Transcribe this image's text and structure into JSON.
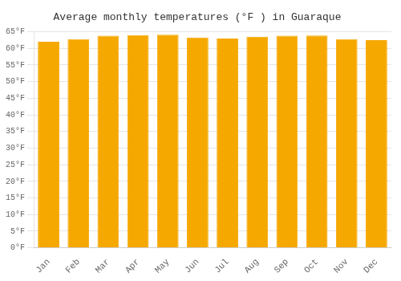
{
  "chart_data": {
    "type": "bar",
    "title": "Average monthly temperatures (°F ) in Guaraque",
    "categories": [
      "Jan",
      "Feb",
      "Mar",
      "Apr",
      "May",
      "Jun",
      "Jul",
      "Aug",
      "Sep",
      "Oct",
      "Nov",
      "Dec"
    ],
    "values": [
      62.0,
      62.8,
      63.8,
      64.0,
      64.1,
      63.3,
      63.0,
      63.5,
      63.8,
      63.9,
      62.8,
      62.5
    ],
    "color": "#F5A800",
    "ylim": [
      0,
      65
    ],
    "yticks": [
      {
        "value": 0,
        "label": "0°F"
      },
      {
        "value": 5,
        "label": "5°F"
      },
      {
        "value": 10,
        "label": "10°F"
      },
      {
        "value": 15,
        "label": "15°F"
      },
      {
        "value": 20,
        "label": "20°F"
      },
      {
        "value": 25,
        "label": "25°F"
      },
      {
        "value": 30,
        "label": "30°F"
      },
      {
        "value": 35,
        "label": "35°F"
      },
      {
        "value": 40,
        "label": "40°F"
      },
      {
        "value": 45,
        "label": "45°F"
      },
      {
        "value": 50,
        "label": "50°F"
      },
      {
        "value": 55,
        "label": "55°F"
      },
      {
        "value": 60,
        "label": "60°F"
      },
      {
        "value": 65,
        "label": "65°F"
      }
    ],
    "grid": true
  }
}
